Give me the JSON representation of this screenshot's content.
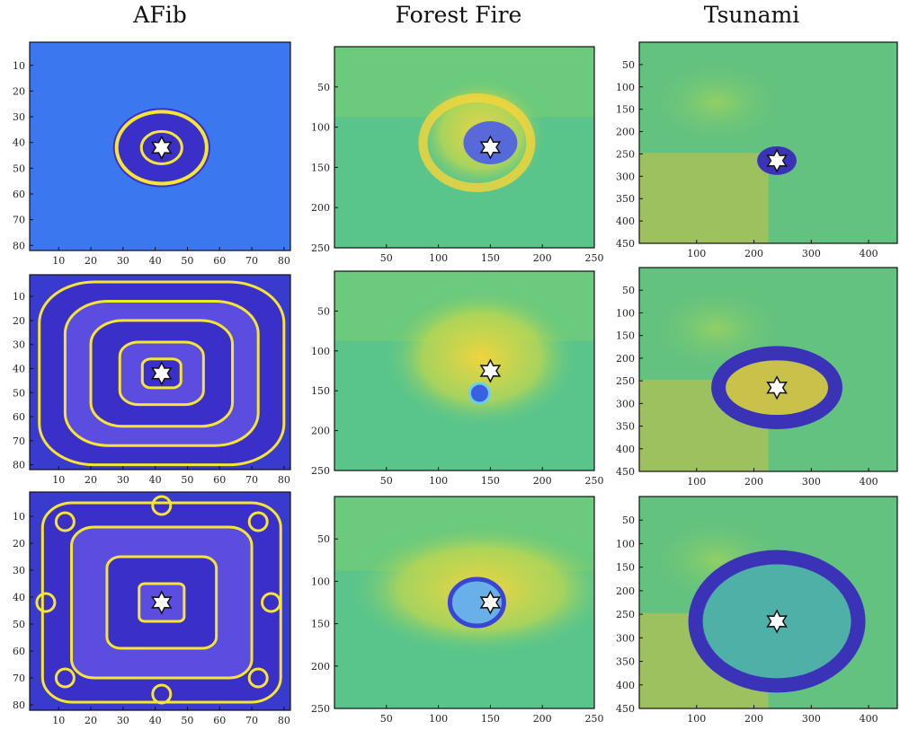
{
  "column_titles": {
    "afib": "AFib",
    "fire": "Forest Fire",
    "tsunami": "Tsunami"
  },
  "colors": {
    "base_blue": "#3b78f0",
    "wave_yellow": "#f6e533",
    "wave_purple": "#3a2fc8",
    "fire_green": "#59c58b",
    "fire_yellow": "#f8d53a",
    "tsunami_green": "#63c27f",
    "tsunami_purple": "#3a33b8",
    "star_fill": "#ffffff",
    "star_stroke": "#111111"
  },
  "chart_data": [
    {
      "type": "heatmap",
      "panel": "afib-row1",
      "column": "AFib",
      "row": 1,
      "xlim": [
        1,
        82
      ],
      "ylim": [
        82,
        1
      ],
      "xticks": [
        10,
        20,
        30,
        40,
        50,
        60,
        70,
        80
      ],
      "yticks": [
        10,
        20,
        30,
        40,
        50,
        60,
        70,
        80
      ],
      "star": [
        42,
        42
      ],
      "rings": [
        8
      ]
    },
    {
      "type": "heatmap",
      "panel": "afib-row2",
      "column": "AFib",
      "row": 2,
      "xlim": [
        1,
        82
      ],
      "ylim": [
        82,
        1
      ],
      "xticks": [
        10,
        20,
        30,
        40,
        50,
        60,
        70,
        80
      ],
      "yticks": [
        10,
        20,
        30,
        40,
        50,
        60,
        70,
        80
      ],
      "star": [
        42,
        42
      ],
      "rings": [
        6,
        15,
        25,
        35
      ]
    },
    {
      "type": "heatmap",
      "panel": "afib-row3",
      "column": "AFib",
      "row": 3,
      "xlim": [
        1,
        82
      ],
      "ylim": [
        82,
        1
      ],
      "xticks": [
        10,
        20,
        30,
        40,
        50,
        60,
        70,
        80
      ],
      "yticks": [
        10,
        20,
        30,
        40,
        50,
        60,
        70,
        80
      ],
      "star": [
        42,
        42
      ],
      "rings": [
        6,
        16,
        28
      ]
    },
    {
      "type": "heatmap",
      "panel": "fire-row1",
      "column": "Forest Fire",
      "row": 1,
      "xlim": [
        0,
        250
      ],
      "ylim": [
        250,
        0
      ],
      "xticks": [
        50,
        100,
        150,
        200,
        250
      ],
      "yticks": [
        50,
        100,
        150,
        200,
        250
      ],
      "star": [
        150,
        125
      ]
    },
    {
      "type": "heatmap",
      "panel": "fire-row2",
      "column": "Forest Fire",
      "row": 2,
      "xlim": [
        0,
        250
      ],
      "ylim": [
        250,
        0
      ],
      "xticks": [
        50,
        100,
        150,
        200,
        250
      ],
      "yticks": [
        50,
        100,
        150,
        200,
        250
      ],
      "star": [
        150,
        125
      ]
    },
    {
      "type": "heatmap",
      "panel": "fire-row3",
      "column": "Forest Fire",
      "row": 3,
      "xlim": [
        0,
        250
      ],
      "ylim": [
        250,
        0
      ],
      "xticks": [
        50,
        100,
        150,
        200,
        250
      ],
      "yticks": [
        50,
        100,
        150,
        200,
        250
      ],
      "star": [
        150,
        125
      ]
    },
    {
      "type": "heatmap",
      "panel": "tsunami-row1",
      "column": "Tsunami",
      "row": 1,
      "xlim": [
        0,
        450
      ],
      "ylim": [
        450,
        0
      ],
      "xticks": [
        100,
        200,
        300,
        400
      ],
      "yticks": [
        50,
        100,
        150,
        200,
        250,
        300,
        350,
        400,
        450
      ],
      "star": [
        240,
        265
      ],
      "ring_radius": [
        20,
        25
      ]
    },
    {
      "type": "heatmap",
      "panel": "tsunami-row2",
      "column": "Tsunami",
      "row": 2,
      "xlim": [
        0,
        450
      ],
      "ylim": [
        450,
        0
      ],
      "xticks": [
        100,
        200,
        300,
        400
      ],
      "yticks": [
        50,
        100,
        150,
        200,
        250,
        300,
        350,
        400,
        450
      ],
      "star": [
        240,
        265
      ],
      "ring_radius": [
        80,
        105
      ]
    },
    {
      "type": "heatmap",
      "panel": "tsunami-row3",
      "column": "Tsunami",
      "row": 3,
      "xlim": [
        0,
        450
      ],
      "ylim": [
        450,
        0
      ],
      "xticks": [
        100,
        200,
        300,
        400
      ],
      "yticks": [
        50,
        100,
        150,
        200,
        250,
        300,
        350,
        400,
        450
      ],
      "star": [
        240,
        265
      ],
      "ring_radius": [
        140,
        145
      ]
    }
  ]
}
